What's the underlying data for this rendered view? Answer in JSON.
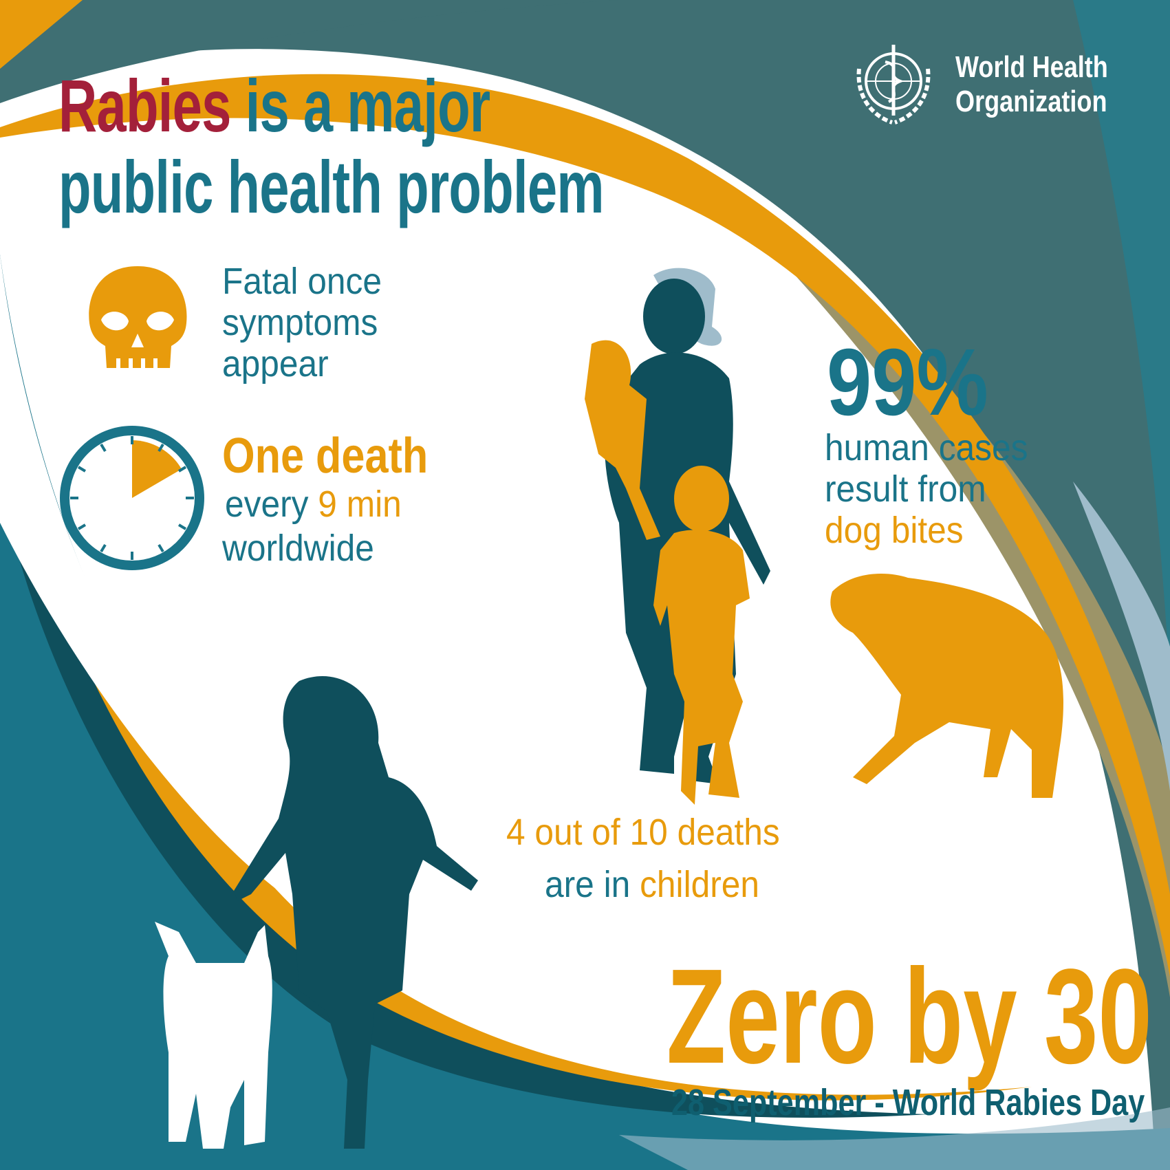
{
  "colors": {
    "teal": "#1a7489",
    "dark_teal": "#0f4f5c",
    "orange": "#e89b0c",
    "red": "#a3203a",
    "slate": "#3f6f73",
    "khaki": "#9c9468",
    "light_blue": "#9fbccb"
  },
  "logo": {
    "line1": "World Health",
    "line2": "Organization",
    "icon": "who-emblem"
  },
  "title": {
    "highlight": "Rabies",
    "line1_rest": " is a major",
    "line2": "public health problem"
  },
  "fact_fatal": {
    "icon": "skull-icon",
    "lines": [
      "Fatal once",
      "symptoms",
      "appear"
    ]
  },
  "fact_death": {
    "icon": "clock-icon",
    "headline": "One death",
    "line2_pre": "every ",
    "line2_hl": "9 min",
    "line3": "worldwide"
  },
  "fact_dogs": {
    "big": "99%",
    "lines": [
      "human cases",
      "result from"
    ],
    "highlight": "dog bites"
  },
  "fact_children": {
    "line1": "4 out of 10 deaths",
    "line2_pre": "are in ",
    "line2_hl": "children"
  },
  "campaign": {
    "slogan": "Zero by 30",
    "date_line": "28 September - World Rabies Day"
  }
}
